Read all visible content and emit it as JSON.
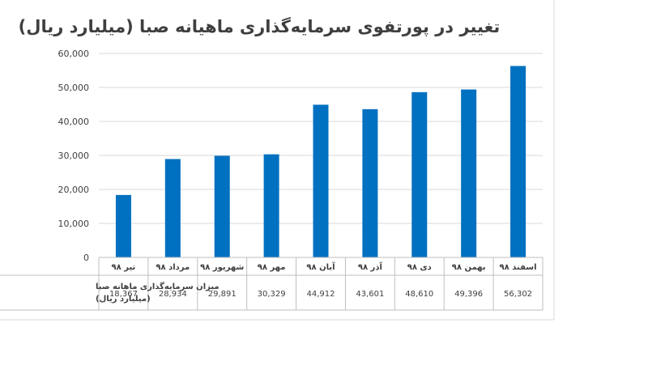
{
  "chart_data": {
    "type": "bar",
    "title": "تغییر در پورتفوی سرمایه‌گذاری ماهیانه صبا (میلیارد ریال)",
    "categories": [
      "تیر ۹۸",
      "مرداد ۹۸",
      "شهریور ۹۸",
      "مهر ۹۸",
      "آبان ۹۸",
      "آذر ۹۸",
      "دی ۹۸",
      "بهمن ۹۸",
      "اسفند ۹۸"
    ],
    "series": [
      {
        "name": "میزان سرمایه‌گذاری ماهانه صبا (میلیارد ریال)",
        "values": [
          18367,
          28934,
          29891,
          30329,
          44912,
          43601,
          48610,
          49396,
          56302
        ],
        "labels": [
          "18,367",
          "28,934",
          "29,891",
          "30,329",
          "44,912",
          "43,601",
          "48,610",
          "49,396",
          "56,302"
        ],
        "color": "#0070c0"
      }
    ],
    "yticks": [
      "0",
      "10,000",
      "20,000",
      "30,000",
      "40,000",
      "50,000",
      "60,000"
    ],
    "ylim": [
      0,
      60000
    ],
    "grid": true,
    "legend": "data-table-below",
    "row_label_lines": [
      "میزان سرمایه‌گذاری ماهانه صبا",
      "(میلیارد ریال)"
    ]
  }
}
